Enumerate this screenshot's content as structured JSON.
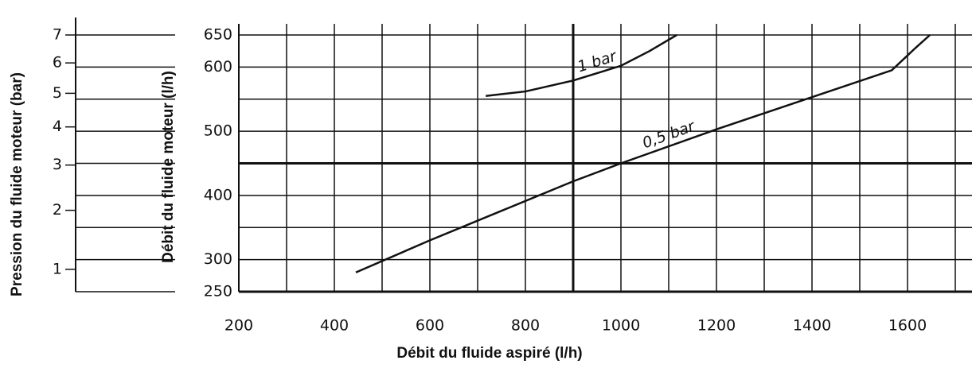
{
  "chart_data": {
    "type": "line",
    "xlabel": "Débit du fluide aspiré (l/h)",
    "ylabel": "Débit du fluide moteur (l/h)",
    "y2label": "Pression du fluide moteur (bar)",
    "xlim": [
      200,
      1735
    ],
    "xticks": [
      200,
      400,
      600,
      800,
      1000,
      1200,
      1400,
      1600
    ],
    "xminorticks": [
      300,
      500,
      700,
      900,
      1100,
      1300,
      1500,
      1700
    ],
    "ylim": [
      250,
      650
    ],
    "yticks": [
      250,
      300,
      400,
      500,
      600,
      650
    ],
    "yminorticks": [
      350,
      450,
      550
    ],
    "y2scale": "sqrt",
    "y2lim": [
      0.71,
      7
    ],
    "y2ticks": [
      1,
      2,
      3,
      4,
      5,
      6,
      7
    ],
    "bold_lines": {
      "x": 900,
      "y": 450
    },
    "grid": true,
    "series": [
      {
        "name": "1 bar",
        "color": "#111111",
        "x": [
          717,
          800,
          900,
          1000,
          1060,
          1117
        ],
        "values": [
          555,
          562,
          579,
          602,
          625,
          650
        ]
      },
      {
        "name": "0,5 bar",
        "color": "#111111",
        "x": [
          445,
          600,
          900,
          1000,
          1200,
          1567,
          1617,
          1647
        ],
        "values": [
          280,
          330,
          422,
          450,
          503,
          595,
          630,
          650
        ]
      }
    ]
  }
}
